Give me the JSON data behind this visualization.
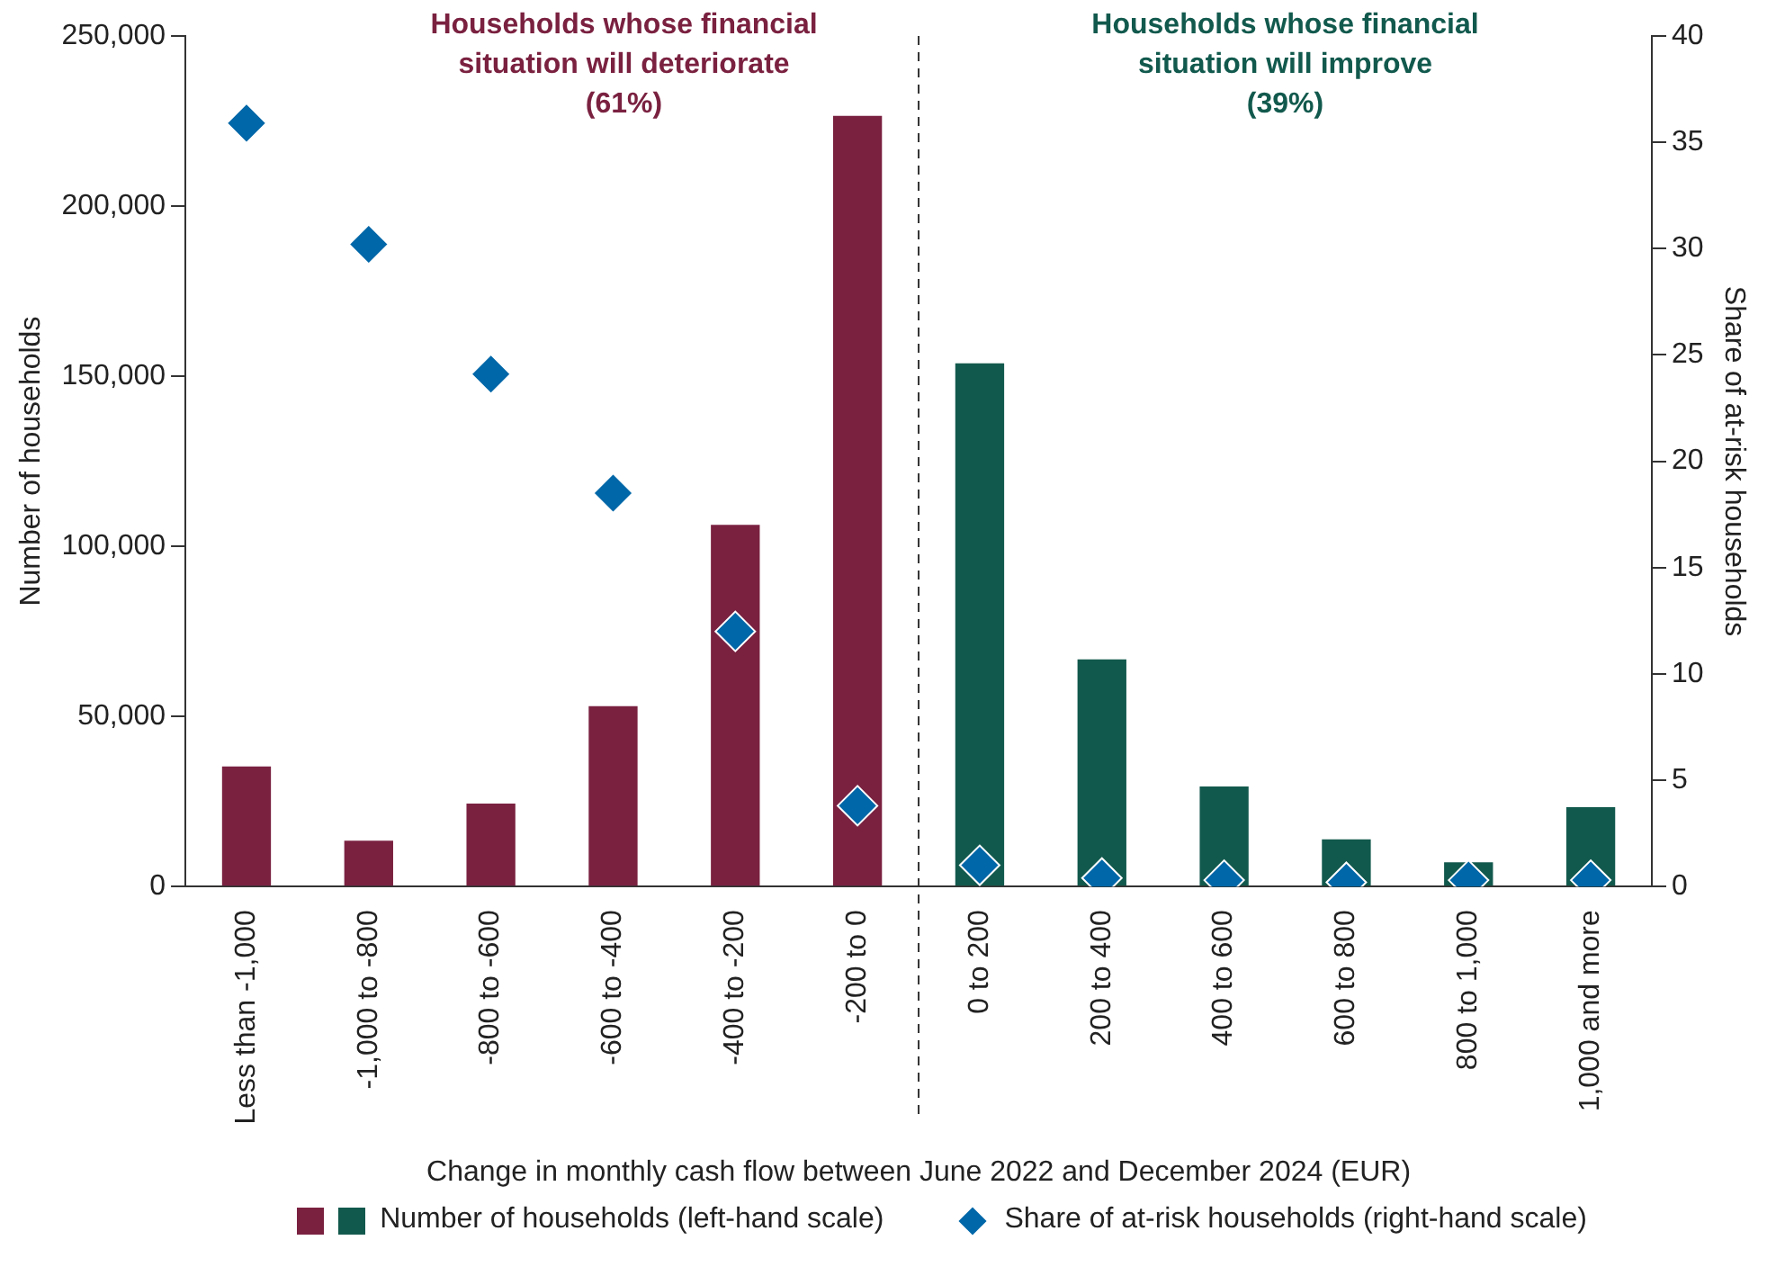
{
  "chart_data": {
    "type": "bar",
    "categories": [
      "Less than -1,000",
      "-1,000 to -800",
      "-800 to -600",
      "-600 to -400",
      "-400 to -200",
      "-200 to 0",
      "0 to 200",
      "200 to 400",
      "400 to 600",
      "600 to 800",
      "800 to 1,000",
      "1,000 and more"
    ],
    "series": [
      {
        "name": "Number of households (left-hand scale)",
        "colors": [
          "#7a2140",
          "#7a2140",
          "#7a2140",
          "#7a2140",
          "#7a2140",
          "#7a2140",
          "#12594d",
          "#12594d",
          "#12594d",
          "#12594d",
          "#12594d",
          "#12594d"
        ],
        "values": [
          35300,
          13500,
          24400,
          53000,
          106300,
          226500,
          153800,
          66800,
          29400,
          13900,
          7100,
          23300
        ]
      },
      {
        "name": "Share of at-risk households (right-hand scale)",
        "type": "scatter",
        "axis": "y2",
        "color": "#0067a8",
        "values": [
          35.9,
          30.2,
          24.1,
          18.5,
          12.0,
          3.8,
          1.0,
          0.4,
          0.3,
          0.2,
          0.3,
          0.3
        ]
      }
    ],
    "xlabel": "Change in monthly cash flow between June 2022 and December 2024 (EUR)",
    "ylabel": "Number of households",
    "y2label": "Share of at-risk households",
    "ylim": [
      0,
      250000
    ],
    "yticks": [
      0,
      {
        "value": 50000,
        "label": "50,000"
      },
      {
        "value": 100000,
        "label": "100,000"
      },
      {
        "value": 150000,
        "label": "150,000"
      },
      {
        "value": 200000,
        "label": "200,000"
      },
      {
        "value": 250000,
        "label": "250,000"
      }
    ],
    "y2lim": [
      0,
      40
    ],
    "y2ticks": [
      0,
      5,
      10,
      15,
      20,
      25,
      30,
      35,
      40
    ],
    "annotations": [
      "Households whose financial\nsituation will deteriorate\n(61%)",
      "Households whose financial\nsituation will improve\n(39%)"
    ],
    "marker": "diamond",
    "legend": "bottom",
    "grid": false
  }
}
